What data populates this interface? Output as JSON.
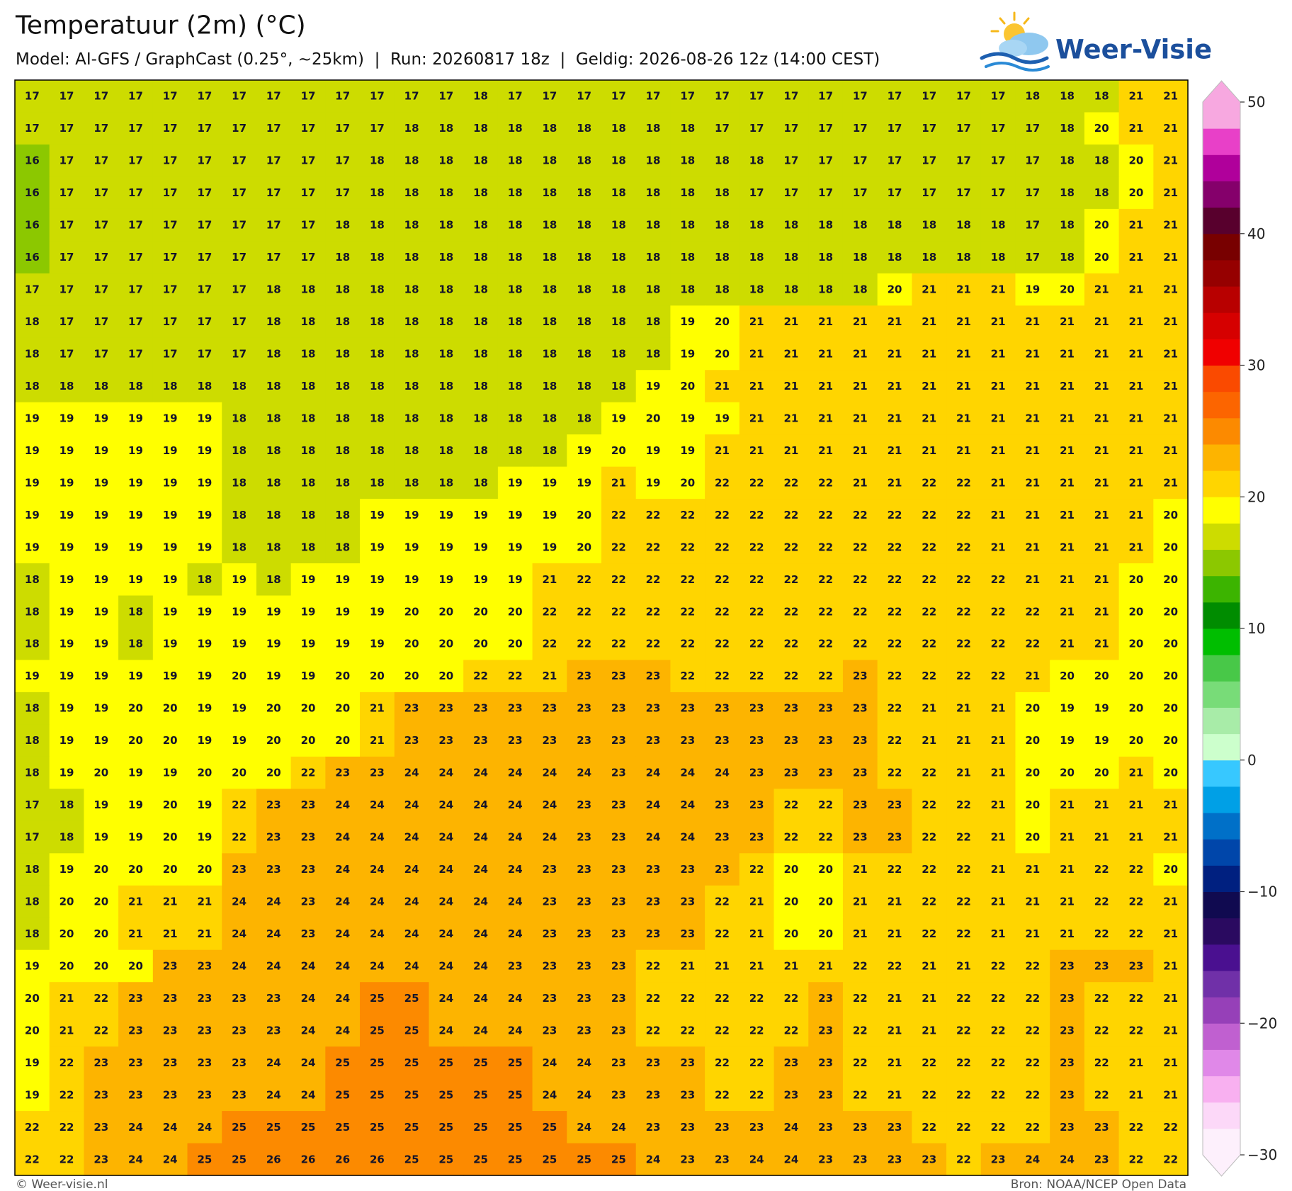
{
  "header": {
    "title": "Temperatuur (2m) (°C)",
    "subtitle": "Model: AI-GFS / GraphCast (0.25°, ~25km)  |  Run: 20260817 18z  |  Geldig: 2026-08-26 12z (14:00 CEST)",
    "logo": "Weer-Visie"
  },
  "map": {
    "values": [
      [
        17,
        17,
        17,
        17,
        17,
        17,
        17,
        17,
        17,
        17,
        17,
        17,
        17,
        18,
        17,
        17,
        17,
        17,
        17,
        17,
        17,
        17,
        17,
        17,
        17,
        17,
        17,
        17,
        17,
        18,
        18,
        18,
        21,
        21
      ],
      [
        17,
        17,
        17,
        17,
        17,
        17,
        17,
        17,
        17,
        17,
        17,
        18,
        18,
        18,
        18,
        18,
        18,
        18,
        18,
        18,
        17,
        17,
        17,
        17,
        17,
        17,
        17,
        17,
        17,
        17,
        18,
        20,
        21,
        21
      ],
      [
        16,
        17,
        17,
        17,
        17,
        17,
        17,
        17,
        17,
        17,
        18,
        18,
        18,
        18,
        18,
        18,
        18,
        18,
        18,
        18,
        18,
        18,
        17,
        17,
        17,
        17,
        17,
        17,
        17,
        17,
        18,
        18,
        20,
        21
      ],
      [
        16,
        17,
        17,
        17,
        17,
        17,
        17,
        17,
        17,
        17,
        18,
        18,
        18,
        18,
        18,
        18,
        18,
        18,
        18,
        18,
        18,
        17,
        17,
        17,
        17,
        17,
        17,
        17,
        17,
        17,
        18,
        18,
        20,
        21
      ],
      [
        16,
        17,
        17,
        17,
        17,
        17,
        17,
        17,
        17,
        18,
        18,
        18,
        18,
        18,
        18,
        18,
        18,
        18,
        18,
        18,
        18,
        18,
        18,
        18,
        18,
        18,
        18,
        18,
        18,
        17,
        18,
        20,
        21,
        21
      ],
      [
        16,
        17,
        17,
        17,
        17,
        17,
        17,
        17,
        17,
        18,
        18,
        18,
        18,
        18,
        18,
        18,
        18,
        18,
        18,
        18,
        18,
        18,
        18,
        18,
        18,
        18,
        18,
        18,
        18,
        17,
        18,
        20,
        21,
        21
      ],
      [
        17,
        17,
        17,
        17,
        17,
        17,
        17,
        18,
        18,
        18,
        18,
        18,
        18,
        18,
        18,
        18,
        18,
        18,
        18,
        18,
        18,
        18,
        18,
        18,
        18,
        20,
        21,
        21,
        21,
        19,
        20,
        21,
        21,
        21
      ],
      [
        18,
        17,
        17,
        17,
        17,
        17,
        17,
        18,
        18,
        18,
        18,
        18,
        18,
        18,
        18,
        18,
        18,
        18,
        18,
        19,
        20,
        21,
        21,
        21,
        21,
        21,
        21,
        21,
        21,
        21,
        21,
        21,
        21,
        21
      ],
      [
        18,
        17,
        17,
        17,
        17,
        17,
        17,
        18,
        18,
        18,
        18,
        18,
        18,
        18,
        18,
        18,
        18,
        18,
        18,
        19,
        20,
        21,
        21,
        21,
        21,
        21,
        21,
        21,
        21,
        21,
        21,
        21,
        21,
        21
      ],
      [
        18,
        18,
        18,
        18,
        18,
        18,
        18,
        18,
        18,
        18,
        18,
        18,
        18,
        18,
        18,
        18,
        18,
        18,
        19,
        20,
        21,
        21,
        21,
        21,
        21,
        21,
        21,
        21,
        21,
        21,
        21,
        21,
        21,
        21
      ],
      [
        19,
        19,
        19,
        19,
        19,
        19,
        18,
        18,
        18,
        18,
        18,
        18,
        18,
        18,
        18,
        18,
        18,
        19,
        20,
        19,
        19,
        21,
        21,
        21,
        21,
        21,
        21,
        21,
        21,
        21,
        21,
        21,
        21,
        21
      ],
      [
        19,
        19,
        19,
        19,
        19,
        19,
        18,
        18,
        18,
        18,
        18,
        18,
        18,
        18,
        18,
        18,
        19,
        20,
        19,
        19,
        21,
        21,
        21,
        21,
        21,
        21,
        21,
        21,
        21,
        21,
        21,
        21,
        21,
        21
      ],
      [
        19,
        19,
        19,
        19,
        19,
        19,
        18,
        18,
        18,
        18,
        18,
        18,
        18,
        18,
        19,
        19,
        19,
        21,
        19,
        20,
        22,
        22,
        22,
        22,
        21,
        21,
        22,
        22,
        21,
        21,
        21,
        21,
        21,
        21
      ],
      [
        19,
        19,
        19,
        19,
        19,
        19,
        18,
        18,
        18,
        18,
        19,
        19,
        19,
        19,
        19,
        19,
        20,
        22,
        22,
        22,
        22,
        22,
        22,
        22,
        22,
        22,
        22,
        22,
        21,
        21,
        21,
        21,
        21,
        20
      ],
      [
        19,
        19,
        19,
        19,
        19,
        19,
        18,
        18,
        18,
        18,
        19,
        19,
        19,
        19,
        19,
        19,
        20,
        22,
        22,
        22,
        22,
        22,
        22,
        22,
        22,
        22,
        22,
        22,
        21,
        21,
        21,
        21,
        21,
        20
      ],
      [
        18,
        19,
        19,
        19,
        19,
        18,
        19,
        18,
        19,
        19,
        19,
        19,
        19,
        19,
        19,
        21,
        22,
        22,
        22,
        22,
        22,
        22,
        22,
        22,
        22,
        22,
        22,
        22,
        22,
        21,
        21,
        21,
        20,
        20
      ],
      [
        18,
        19,
        19,
        18,
        19,
        19,
        19,
        19,
        19,
        19,
        19,
        20,
        20,
        20,
        20,
        22,
        22,
        22,
        22,
        22,
        22,
        22,
        22,
        22,
        22,
        22,
        22,
        22,
        22,
        22,
        21,
        21,
        20,
        20
      ],
      [
        18,
        19,
        19,
        18,
        19,
        19,
        19,
        19,
        19,
        19,
        19,
        20,
        20,
        20,
        20,
        22,
        22,
        22,
        22,
        22,
        22,
        22,
        22,
        22,
        22,
        22,
        22,
        22,
        22,
        22,
        21,
        21,
        20,
        20
      ],
      [
        19,
        19,
        19,
        19,
        19,
        19,
        20,
        19,
        19,
        20,
        20,
        20,
        20,
        22,
        22,
        21,
        23,
        23,
        23,
        22,
        22,
        22,
        22,
        22,
        23,
        22,
        22,
        22,
        22,
        21,
        20,
        20,
        20,
        20
      ],
      [
        18,
        19,
        19,
        20,
        20,
        19,
        19,
        20,
        20,
        20,
        21,
        23,
        23,
        23,
        23,
        23,
        23,
        23,
        23,
        23,
        23,
        23,
        23,
        23,
        23,
        22,
        21,
        21,
        21,
        20,
        19,
        19,
        20,
        20
      ],
      [
        18,
        19,
        19,
        20,
        20,
        19,
        19,
        20,
        20,
        20,
        21,
        23,
        23,
        23,
        23,
        23,
        23,
        23,
        23,
        23,
        23,
        23,
        23,
        23,
        23,
        22,
        21,
        21,
        21,
        20,
        19,
        19,
        20,
        20
      ],
      [
        18,
        19,
        20,
        19,
        19,
        20,
        20,
        20,
        22,
        23,
        23,
        24,
        24,
        24,
        24,
        24,
        24,
        23,
        24,
        24,
        24,
        23,
        23,
        23,
        23,
        22,
        22,
        21,
        21,
        20,
        20,
        20,
        21,
        20
      ],
      [
        17,
        18,
        19,
        19,
        20,
        19,
        22,
        23,
        23,
        24,
        24,
        24,
        24,
        24,
        24,
        24,
        23,
        23,
        24,
        24,
        23,
        23,
        22,
        22,
        23,
        23,
        22,
        22,
        21,
        20,
        21,
        21,
        21,
        21
      ],
      [
        17,
        18,
        19,
        19,
        20,
        19,
        22,
        23,
        23,
        24,
        24,
        24,
        24,
        24,
        24,
        24,
        23,
        23,
        24,
        24,
        23,
        23,
        22,
        22,
        23,
        23,
        22,
        22,
        21,
        20,
        21,
        21,
        21,
        21
      ],
      [
        18,
        19,
        20,
        20,
        20,
        20,
        23,
        23,
        23,
        24,
        24,
        24,
        24,
        24,
        24,
        23,
        23,
        23,
        23,
        23,
        23,
        22,
        20,
        20,
        21,
        22,
        22,
        22,
        21,
        21,
        21,
        22,
        22,
        20
      ],
      [
        18,
        20,
        20,
        21,
        21,
        21,
        24,
        24,
        23,
        24,
        24,
        24,
        24,
        24,
        24,
        23,
        23,
        23,
        23,
        23,
        22,
        21,
        20,
        20,
        21,
        21,
        22,
        22,
        21,
        21,
        21,
        22,
        22,
        21
      ],
      [
        18,
        20,
        20,
        21,
        21,
        21,
        24,
        24,
        23,
        24,
        24,
        24,
        24,
        24,
        24,
        23,
        23,
        23,
        23,
        23,
        22,
        21,
        20,
        20,
        21,
        21,
        22,
        22,
        21,
        21,
        21,
        22,
        22,
        21
      ],
      [
        19,
        20,
        20,
        20,
        23,
        23,
        24,
        24,
        24,
        24,
        24,
        24,
        24,
        24,
        23,
        23,
        23,
        23,
        22,
        21,
        21,
        21,
        21,
        21,
        22,
        22,
        21,
        21,
        22,
        22,
        23,
        23,
        23,
        21
      ],
      [
        20,
        21,
        22,
        23,
        23,
        23,
        23,
        23,
        24,
        24,
        25,
        25,
        24,
        24,
        24,
        23,
        23,
        23,
        22,
        22,
        22,
        22,
        22,
        23,
        22,
        21,
        21,
        22,
        22,
        22,
        23,
        22,
        22,
        21
      ],
      [
        20,
        21,
        22,
        23,
        23,
        23,
        23,
        23,
        24,
        24,
        25,
        25,
        24,
        24,
        24,
        23,
        23,
        23,
        22,
        22,
        22,
        22,
        22,
        23,
        22,
        21,
        21,
        22,
        22,
        22,
        23,
        22,
        22,
        21
      ],
      [
        19,
        22,
        23,
        23,
        23,
        23,
        23,
        24,
        24,
        25,
        25,
        25,
        25,
        25,
        25,
        24,
        24,
        23,
        23,
        23,
        22,
        22,
        23,
        23,
        22,
        21,
        22,
        22,
        22,
        22,
        23,
        22,
        21,
        21
      ],
      [
        19,
        22,
        23,
        23,
        23,
        23,
        23,
        24,
        24,
        25,
        25,
        25,
        25,
        25,
        25,
        24,
        24,
        23,
        23,
        23,
        22,
        22,
        23,
        23,
        22,
        21,
        22,
        22,
        22,
        22,
        23,
        22,
        21,
        21
      ],
      [
        22,
        22,
        23,
        24,
        24,
        24,
        25,
        25,
        25,
        25,
        25,
        25,
        25,
        25,
        25,
        25,
        24,
        24,
        23,
        23,
        23,
        23,
        24,
        23,
        23,
        23,
        22,
        22,
        22,
        22,
        23,
        23,
        22,
        22
      ],
      [
        22,
        22,
        23,
        24,
        24,
        25,
        25,
        26,
        26,
        26,
        26,
        25,
        25,
        25,
        25,
        25,
        25,
        25,
        24,
        23,
        23,
        24,
        24,
        23,
        23,
        23,
        23,
        22,
        23,
        24,
        24,
        23,
        22,
        22
      ]
    ]
  },
  "colorbar": {
    "lim": [
      -30,
      50
    ],
    "ticks": [
      50,
      40,
      30,
      20,
      10,
      0,
      {
        "value": -10,
        "label": "−10"
      },
      {
        "value": -20,
        "label": "−20"
      },
      {
        "value": -30,
        "label": "−30"
      }
    ],
    "colors": [
      "#fdf0fc",
      "#fcd8f8",
      "#f8b0f0",
      "#e088e8",
      "#c060d0",
      "#9640b8",
      "#7030a8",
      "#4a1090",
      "#2a0a60",
      "#100a50",
      "#002080",
      "#0046aa",
      "#0070c8",
      "#00a0e6",
      "#37c8ff",
      "#ccffcc",
      "#a8eca8",
      "#78dc78",
      "#48c848",
      "#00be00",
      "#008c00",
      "#3cb400",
      "#8cc800",
      "#cddc00",
      "#ffff00",
      "#ffd500",
      "#fdb400",
      "#fc8a00",
      "#fc6500",
      "#fa4a00",
      "#f00000",
      "#d60000",
      "#b80000",
      "#960000",
      "#780000",
      "#58002d",
      "#85006b",
      "#b0009b",
      "#e840c8",
      "#f7a8e0"
    ]
  },
  "footer": {
    "copyright": "© Weer-visie.nl",
    "source": "Bron: NOAA/NCEP Open Data"
  }
}
